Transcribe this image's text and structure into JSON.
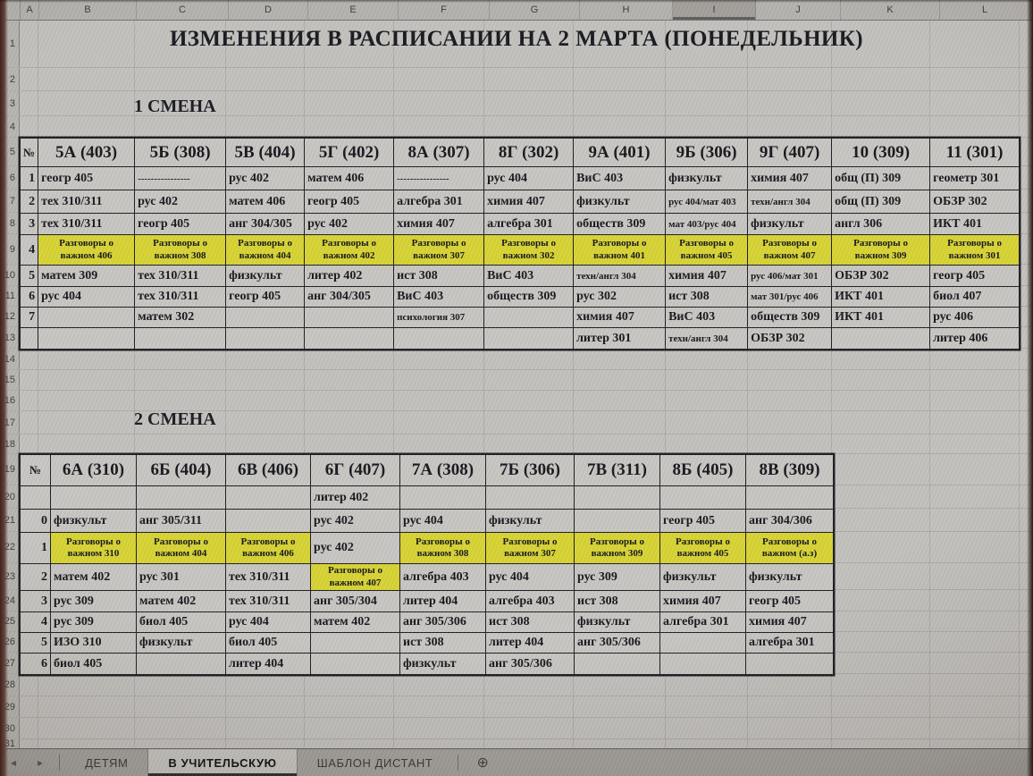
{
  "title": "ИЗМЕНЕНИЯ В РАСПИСАНИИ НА 2 МАРТА (ПОНЕДЕЛЬНИК)",
  "grid": {
    "columns": [
      "A",
      "B",
      "C",
      "D",
      "E",
      "F",
      "G",
      "H",
      "I",
      "J",
      "K",
      "L"
    ],
    "rows": [
      "1",
      "2",
      "3",
      "4",
      "5",
      "6",
      "7",
      "8",
      "9",
      "10",
      "11",
      "12",
      "13",
      "14",
      "15",
      "16",
      "17",
      "18",
      "19",
      "20",
      "21",
      "22",
      "23",
      "24",
      "25",
      "26",
      "27",
      "28",
      "29",
      "30",
      "31"
    ],
    "selected_column": "I"
  },
  "shift1": {
    "label": "1 СМЕНА",
    "num_header": "№",
    "classes": [
      "5А (403)",
      "5Б (308)",
      "5В (404)",
      "5Г (402)",
      "8А (307)",
      "8Г (302)",
      "9А (401)",
      "9Б (306)",
      "9Г (407)",
      "10 (309)",
      "11 (301)"
    ],
    "rows": [
      {
        "num": "1",
        "cells": [
          "геогр 405",
          "----------------",
          "рус 402",
          "матем 406",
          "----------------",
          "рус 404",
          "ВиС 403",
          "физкульт",
          "химия 407",
          "общ (П) 309",
          "геометр 301"
        ]
      },
      {
        "num": "2",
        "cells": [
          "тех 310/311",
          "рус 402",
          "матем 406",
          "геогр 405",
          "алгебра 301",
          "химия 407",
          "физкульт",
          "рус 404/мат 403",
          "техн/англ 304",
          "общ (П) 309",
          "ОБЗР 302"
        ]
      },
      {
        "num": "3",
        "cells": [
          "тех 310/311",
          "геогр 405",
          "анг 304/305",
          "рус 402",
          "химия 407",
          "алгебра 301",
          "обществ 309",
          "мат 403/рус 404",
          "физкульт",
          "англ 306",
          "ИКТ 401"
        ]
      },
      {
        "num": "4",
        "cells": [
          {
            "t": "Разговоры о важном 406",
            "y": 1
          },
          {
            "t": "Разговоры о важном 308",
            "y": 1
          },
          {
            "t": "Разговоры о важном 404",
            "y": 1
          },
          {
            "t": "Разговоры о важном 402",
            "y": 1
          },
          {
            "t": "Разговоры о важном 307",
            "y": 1
          },
          {
            "t": "Разговоры о важном 302",
            "y": 1
          },
          {
            "t": "Разговоры о важном 401",
            "y": 1
          },
          {
            "t": "Разговоры о важном 405",
            "y": 1
          },
          {
            "t": "Разговоры о важном 407",
            "y": 1
          },
          {
            "t": "Разговоры о важном 309",
            "y": 1
          },
          {
            "t": "Разговоры о важном 301",
            "y": 1
          }
        ]
      },
      {
        "num": "5",
        "cells": [
          "матем 309",
          "тех 310/311",
          "физкульт",
          "литер 402",
          "ист 308",
          "ВиС 403",
          "техн/англ 304",
          "химия 407",
          "рус 406/мат 301",
          "ОБЗР 302",
          "геогр 405"
        ]
      },
      {
        "num": "6",
        "cells": [
          "рус 404",
          "тех 310/311",
          "геогр 405",
          "анг 304/305",
          "ВиС 403",
          "обществ 309",
          "рус 302",
          "ист 308",
          "мат 301/рус 406",
          "ИКТ 401",
          "биол 407"
        ]
      },
      {
        "num": "7",
        "cells": [
          "",
          "матем 302",
          "",
          "",
          "психология 307",
          "",
          "химия 407",
          "ВиС 403",
          "обществ 309",
          "ИКТ 401",
          "рус 406"
        ]
      },
      {
        "num": "",
        "cells": [
          "",
          "",
          "",
          "",
          "",
          "",
          "литер 301",
          "техн/англ 304",
          "ОБЗР 302",
          "",
          "литер 406"
        ]
      }
    ]
  },
  "shift2": {
    "label": "2 СМЕНА",
    "num_header": "№",
    "classes": [
      "6А (310)",
      "6Б (404)",
      "6В (406)",
      "6Г (407)",
      "7А (308)",
      "7Б (306)",
      "7В (311)",
      "8Б (405)",
      "8В (309)"
    ],
    "rows": [
      {
        "num": "",
        "cells": [
          "",
          "",
          "",
          "литер 402",
          "",
          "",
          "",
          "",
          ""
        ]
      },
      {
        "num": "0",
        "cells": [
          "физкульт",
          "анг 305/311",
          "",
          "рус 402",
          "рус 404",
          "физкульт",
          "",
          "геогр 405",
          "анг 304/306"
        ]
      },
      {
        "num": "1",
        "cells": [
          {
            "t": "Разговоры о важном 310",
            "y": 1
          },
          {
            "t": "Разговоры о важном 404",
            "y": 1
          },
          {
            "t": "Разговоры о важном 406",
            "y": 1
          },
          "рус 402",
          {
            "t": "Разговоры о важном 308",
            "y": 1
          },
          {
            "t": "Разговоры о важном 307",
            "y": 1
          },
          {
            "t": "Разговоры о важном 309",
            "y": 1
          },
          {
            "t": "Разговоры о важном 405",
            "y": 1
          },
          {
            "t": "Разговоры о важном (а.з)",
            "y": 1
          }
        ]
      },
      {
        "num": "2",
        "cells": [
          "матем 402",
          "рус 301",
          "тех 310/311",
          {
            "t": "Разговоры о важном 407",
            "y": 1
          },
          "алгебра 403",
          "рус 404",
          "рус 309",
          "физкульт",
          "физкульт"
        ]
      },
      {
        "num": "3",
        "cells": [
          "рус 309",
          "матем 402",
          "тех 310/311",
          "анг 305/304",
          "литер 404",
          "алгебра 403",
          "ист 308",
          "химия 407",
          "геогр 405"
        ]
      },
      {
        "num": "4",
        "cells": [
          "рус 309",
          "биол 405",
          "рус 404",
          "матем 402",
          "анг 305/306",
          "ист 308",
          "физкульт",
          "алгебра 301",
          "химия 407"
        ]
      },
      {
        "num": "5",
        "cells": [
          "ИЗО 310",
          "физкульт",
          "биол 405",
          "",
          "ист 308",
          "литер 404",
          "анг 305/306",
          "",
          "алгебра 301"
        ]
      },
      {
        "num": "6",
        "cells": [
          "биол 405",
          "",
          "литер 404",
          "",
          "физкульт",
          "анг 305/306",
          "",
          "",
          ""
        ]
      }
    ]
  },
  "window": {
    "nav_left": "◂",
    "nav_right": "▸",
    "tabs": [
      {
        "label": "ДЕТЯМ",
        "active": false
      },
      {
        "label": "В УЧИТЕЛЬСКУЮ",
        "active": true
      },
      {
        "label": "ШАБЛОН ДИСТАНТ",
        "active": false
      }
    ],
    "add_sheet": "⊕"
  },
  "colors": {
    "highlight": "#d7d334",
    "cell_bg": "#c8c6c2",
    "table_border": "#1e1e22"
  }
}
